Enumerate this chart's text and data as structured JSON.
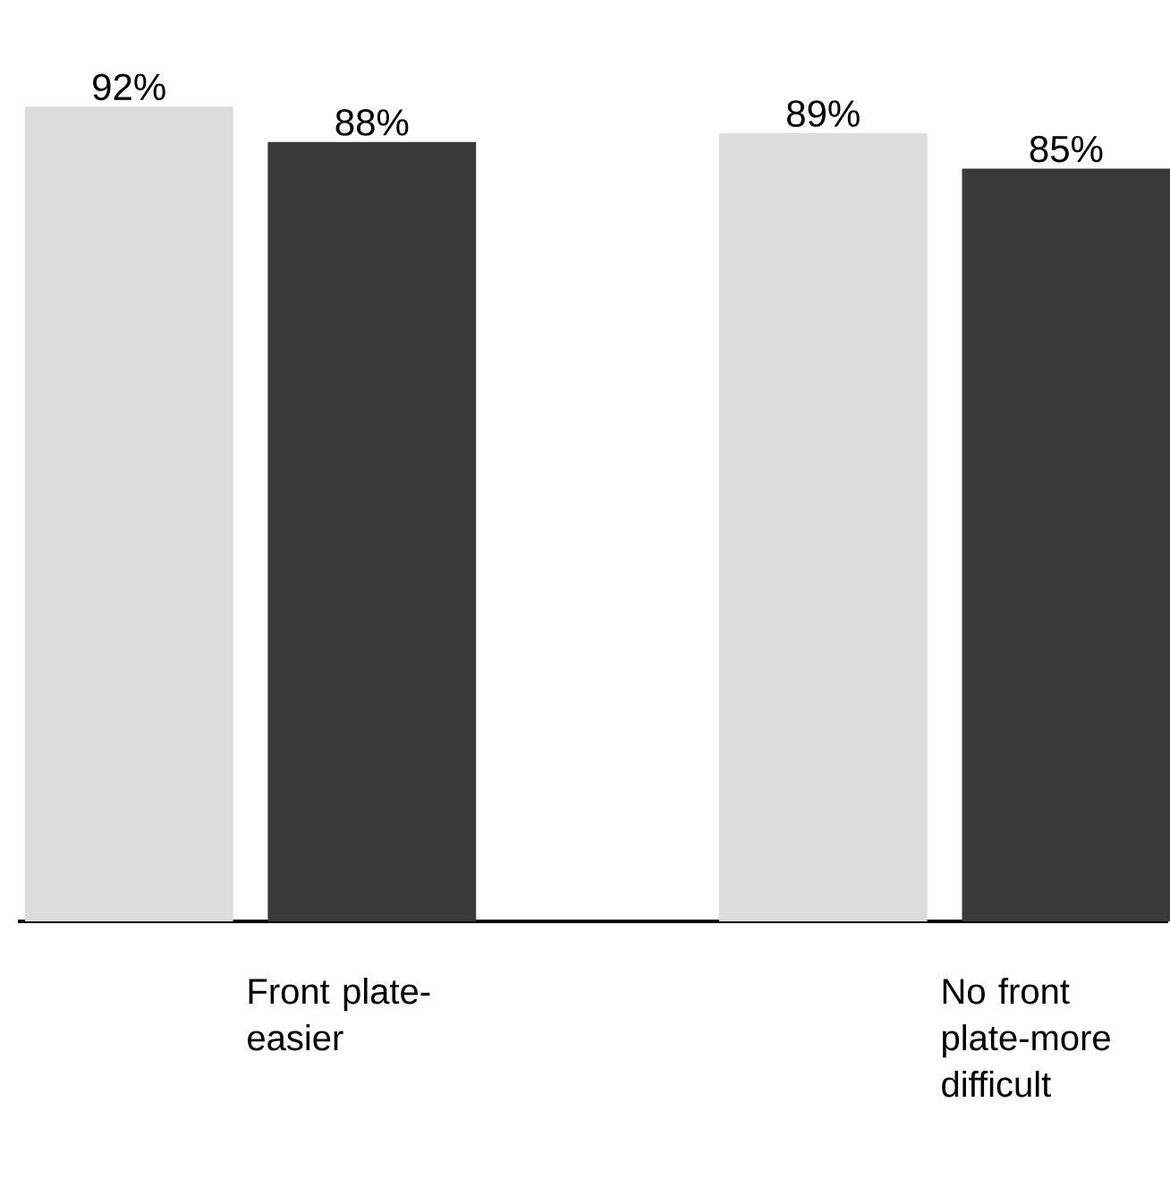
{
  "chart_data": {
    "type": "bar",
    "categories": [
      "Front plate-easier",
      "No front plate-more difficult"
    ],
    "series": [
      {
        "color": "#dcdcdc",
        "values": [
          92,
          89
        ],
        "value_labels": [
          "92%",
          "89%"
        ]
      },
      {
        "color": "#3a3a3a",
        "values": [
          88,
          85
        ],
        "value_labels": [
          "88%",
          "85%"
        ]
      }
    ],
    "tick_labels": "x"
  }
}
